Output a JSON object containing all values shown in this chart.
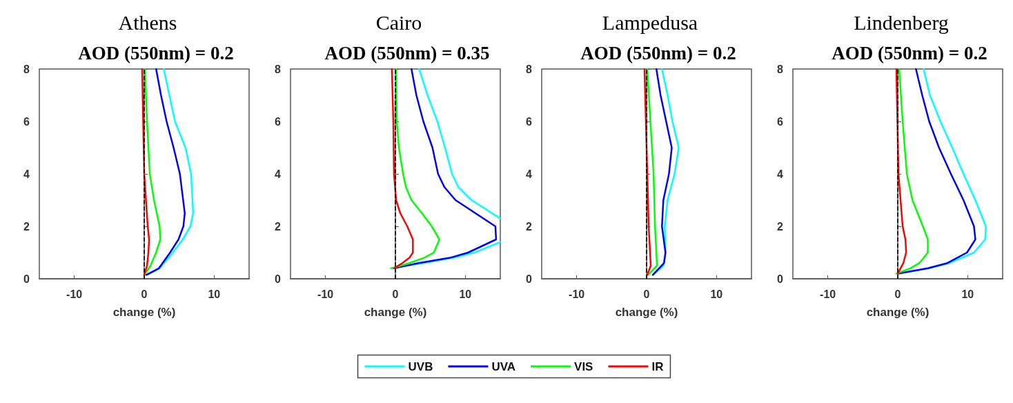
{
  "chart_data": [
    {
      "type": "line",
      "title": "Athens",
      "subtitle": "AOD (550nm) = 0.2",
      "xlabel": "change (%)",
      "xlim": [
        -15,
        15
      ],
      "xticks": [
        -10,
        0,
        10
      ],
      "ylim": [
        0,
        8
      ],
      "yticks": [
        0,
        2,
        4,
        6,
        8
      ],
      "grid": false,
      "legend": "bottom",
      "ref_lines": [
        {
          "axis": "x",
          "value": 0,
          "color": "#000000",
          "line_style": "dashed"
        }
      ],
      "series": [
        {
          "name": "UVB",
          "color": "#00ffff",
          "x": [
            0.4,
            2.2,
            4.1,
            5.5,
            6.6,
            7.0,
            6.7,
            5.9,
            4.4,
            2.8
          ],
          "values": [
            0.15,
            0.4,
            1,
            1.5,
            2,
            2.5,
            4,
            5,
            6,
            8
          ]
        },
        {
          "name": "UVA",
          "color": "#0000ff",
          "x": [
            0.3,
            2.1,
            3.7,
            4.9,
            5.6,
            5.8,
            5.1,
            4.2,
            3.2,
            2.4,
            1.7
          ],
          "values": [
            0.15,
            0.4,
            1,
            1.5,
            2,
            2.5,
            4,
            5,
            6,
            7,
            8
          ]
        },
        {
          "name": "VIS",
          "color": "#00ff00",
          "x": [
            0,
            0.9,
            1.7,
            2.3,
            2.2,
            1.4,
            0.8,
            0.4,
            0.1
          ],
          "values": [
            0.15,
            0.5,
            1,
            1.5,
            2,
            3,
            4,
            6,
            8
          ]
        },
        {
          "name": "IR",
          "color": "#ff0000",
          "x": [
            0,
            0.4,
            0.6,
            0.7,
            0.5,
            0,
            -0.3
          ],
          "values": [
            0.15,
            0.5,
            1,
            1.5,
            2,
            4,
            8
          ]
        }
      ]
    },
    {
      "type": "line",
      "title": "Cairo",
      "subtitle": "AOD (550nm) = 0.35",
      "xlabel": "change (%)",
      "xlim": [
        -15,
        15
      ],
      "xticks": [
        -10,
        0,
        10
      ],
      "ylim": [
        0,
        8
      ],
      "yticks": [
        0,
        2,
        4,
        6,
        8
      ],
      "grid": false,
      "ref_lines": [
        {
          "axis": "x",
          "value": 0,
          "color": "#000000",
          "line_style": "dashed"
        }
      ],
      "series": [
        {
          "color": "#00ffff",
          "x": [
            -0.7,
            4,
            8.3,
            11.3,
            15,
            null,
            15,
            10.9,
            9.0,
            8.1,
            7.1,
            6.0,
            4.6,
            3.4
          ],
          "values": [
            0.4,
            0.6,
            0.8,
            1,
            1.4,
            null,
            2.3,
            3,
            3.5,
            4,
            5,
            6,
            7,
            8
          ]
        },
        {
          "color": "#0000ff",
          "x": [
            -0.2,
            3.3,
            7.8,
            10.4,
            14.4,
            14.3,
            8.6,
            7.0,
            6.1,
            5.3,
            4.0,
            3.0,
            2.3
          ],
          "values": [
            0.4,
            0.6,
            0.8,
            1,
            1.5,
            2,
            3,
            3.5,
            4,
            5,
            6,
            7,
            8
          ]
        },
        {
          "color": "#00ff00",
          "x": [
            -0.5,
            2.0,
            4.1,
            5.5,
            6.3,
            5.2,
            3.8,
            2.3,
            1.5,
            1.1,
            0.5,
            0.2,
            0.1
          ],
          "values": [
            0.4,
            0.6,
            0.8,
            1,
            1.5,
            2,
            2.5,
            3,
            3.5,
            4,
            5,
            6,
            8
          ]
        },
        {
          "color": "#ff0000",
          "x": [
            -0.2,
            1.0,
            2.0,
            2.5,
            2.5,
            1.7,
            0.7,
            0.1,
            -0.2,
            -0.3,
            -0.5
          ],
          "values": [
            0.4,
            0.6,
            0.8,
            1,
            1.5,
            2,
            2.5,
            3,
            4,
            6,
            8
          ]
        }
      ]
    },
    {
      "type": "line",
      "title": "Lampedusa",
      "subtitle": "AOD (550nm) = 0.2",
      "xlabel": "change (%)",
      "xlim": [
        -15,
        15
      ],
      "xticks": [
        -10,
        0,
        10
      ],
      "ylim": [
        0,
        8
      ],
      "yticks": [
        0,
        2,
        4,
        6,
        8
      ],
      "grid": false,
      "ref_lines": [
        {
          "axis": "x",
          "value": 0,
          "color": "#000000",
          "line_style": "dashed"
        }
      ],
      "series": [
        {
          "color": "#00ffff",
          "x": [
            0.9,
            2.4,
            2.7,
            2.6,
            3.0,
            4.0,
            4.6,
            3.7,
            3.0,
            2.2
          ],
          "values": [
            0.15,
            0.5,
            1,
            2,
            3,
            4,
            5,
            6,
            7,
            8
          ]
        },
        {
          "color": "#0000ff",
          "x": [
            0.9,
            2.5,
            2.7,
            2.2,
            2.4,
            3.2,
            3.6,
            2.8,
            2.0,
            1.4
          ],
          "values": [
            0.15,
            0.6,
            1,
            2,
            3,
            4,
            5,
            6,
            7,
            8
          ]
        },
        {
          "color": "#00ff00",
          "x": [
            0.2,
            1.5,
            1.4,
            1.2,
            1.0,
            0.1
          ],
          "values": [
            0.15,
            0.5,
            1,
            2,
            4,
            8
          ]
        },
        {
          "color": "#ff0000",
          "x": [
            0.1,
            0.6,
            0.5,
            0.3,
            0.1,
            -0.3
          ],
          "values": [
            0.15,
            0.5,
            1,
            2,
            4,
            8
          ]
        }
      ]
    },
    {
      "type": "line",
      "title": "Lindenberg",
      "subtitle": "AOD (550nm) = 0.2",
      "xlabel": "change (%)",
      "xlim": [
        -15,
        15
      ],
      "xticks": [
        -10,
        0,
        10
      ],
      "ylim": [
        0,
        8
      ],
      "yticks": [
        0,
        2,
        4,
        6,
        8
      ],
      "grid": false,
      "ref_lines": [
        {
          "axis": "x",
          "value": 0,
          "color": "#000000",
          "line_style": "dashed"
        }
      ],
      "series": [
        {
          "color": "#00ffff",
          "x": [
            0,
            4.5,
            7.4,
            10.9,
            12.5,
            12.6,
            11.1,
            9.4,
            7.8,
            6.1,
            4.6,
            3.7
          ],
          "values": [
            0.2,
            0.4,
            0.6,
            1,
            1.5,
            2,
            3,
            4,
            5,
            6,
            7,
            8
          ]
        },
        {
          "color": "#0000ff",
          "x": [
            0,
            4.3,
            7.1,
            9.9,
            11.1,
            10.9,
            9.4,
            7.6,
            5.9,
            4.5,
            3.5,
            2.6
          ],
          "values": [
            0.2,
            0.4,
            0.6,
            1,
            1.5,
            2,
            3,
            4,
            5,
            6,
            7,
            8
          ]
        },
        {
          "color": "#00ff00",
          "x": [
            -0.2,
            1.8,
            3.1,
            4.3,
            4.3,
            3.6,
            2.1,
            1.3,
            0.7,
            0.2
          ],
          "values": [
            0.2,
            0.4,
            0.6,
            1,
            1.5,
            2,
            3,
            4,
            6,
            8
          ]
        },
        {
          "color": "#ff0000",
          "x": [
            0,
            0.8,
            1.2,
            1.1,
            0.7,
            0.1,
            -0.2
          ],
          "values": [
            0.2,
            0.6,
            1,
            1.5,
            2,
            4,
            8
          ]
        }
      ]
    }
  ]
}
